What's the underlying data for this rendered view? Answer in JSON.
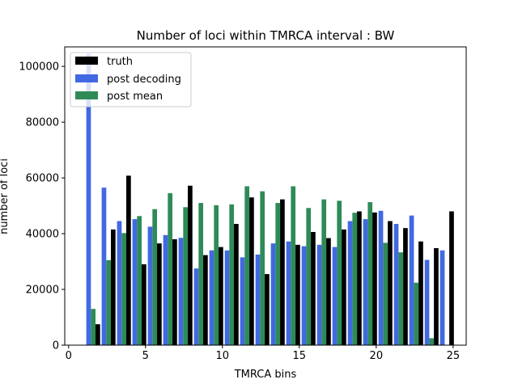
{
  "chart_data": {
    "type": "bar",
    "title": "Number of loci within TMRCA interval : BW",
    "xlabel": "TMRCA bins",
    "ylabel": "number of loci",
    "xlim": [
      -0.25,
      25.85
    ],
    "ylim": [
      0,
      107000
    ],
    "xticks": [
      0,
      5,
      10,
      15,
      20,
      25
    ],
    "xtick_labels": [
      "0",
      "5",
      "10",
      "15",
      "20",
      "25"
    ],
    "yticks": [
      0,
      20000,
      40000,
      60000,
      80000,
      100000
    ],
    "ytick_labels": [
      "0",
      "20000",
      "40000",
      "60000",
      "80000",
      "100000"
    ],
    "bar_group_width": 0.3,
    "legend_position": "top-left",
    "grid": false,
    "x": [
      1,
      2,
      3,
      4,
      5,
      6,
      7,
      8,
      9,
      10,
      11,
      12,
      13,
      14,
      15,
      16,
      17,
      18,
      19,
      20,
      21,
      22,
      23,
      24
    ],
    "series": [
      {
        "name": "truth",
        "color": "#000000",
        "offset": 0.9,
        "values": [
          7500,
          41500,
          60800,
          29000,
          36500,
          38000,
          57200,
          32300,
          35200,
          43500,
          53000,
          25500,
          52300,
          36000,
          40600,
          38400,
          41500,
          48000,
          47600,
          44500,
          42000,
          37200,
          34800,
          48000
        ]
      },
      {
        "name": "post decoding",
        "color": "#4169e1",
        "offset": 0.3,
        "values": [
          104500,
          56500,
          44500,
          45200,
          42500,
          39500,
          38500,
          27500,
          34000,
          34000,
          31500,
          32500,
          36500,
          37200,
          35500,
          36000,
          35200,
          44500,
          45200,
          48200,
          43500,
          46500,
          30600,
          34000
        ]
      },
      {
        "name": "post mean",
        "color": "#2e8b57",
        "offset": 0.6,
        "values": [
          13000,
          30500,
          40200,
          46300,
          48800,
          54500,
          49500,
          51000,
          50200,
          50500,
          57000,
          55200,
          51000,
          57000,
          49200,
          52300,
          51800,
          47500,
          51300,
          36700,
          33300,
          22400,
          2500,
          0
        ]
      }
    ]
  }
}
